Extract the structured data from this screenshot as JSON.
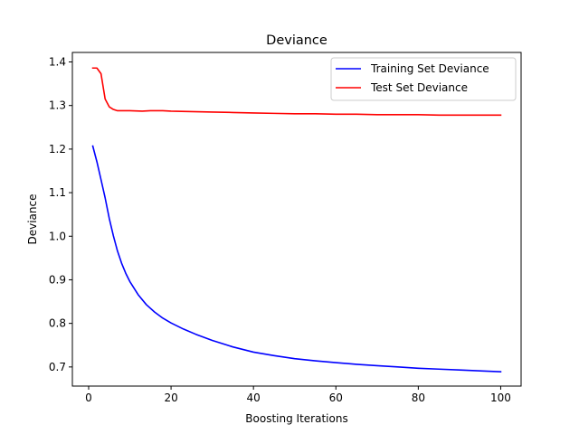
{
  "chart_data": {
    "type": "line",
    "title": "Deviance",
    "xlabel": "Boosting Iterations",
    "ylabel": "Deviance",
    "xlim": [
      -3.95,
      104.95
    ],
    "ylim": [
      0.6561,
      1.4218
    ],
    "xticks": [
      0,
      20,
      40,
      60,
      80,
      100
    ],
    "yticks": [
      0.7,
      0.8,
      0.9,
      1.0,
      1.1,
      1.2,
      1.3,
      1.4
    ],
    "ytick_labels": [
      "0.7",
      "0.8",
      "0.9",
      "1.0",
      "1.1",
      "1.2",
      "1.3",
      "1.4"
    ],
    "grid": false,
    "legend_position": "top-right",
    "series": [
      {
        "name": "Training Set Deviance",
        "color": "#0000ff",
        "x": [
          1,
          2,
          3,
          4,
          5,
          6,
          7,
          8,
          9,
          10,
          12,
          14,
          16,
          18,
          20,
          23,
          26,
          30,
          35,
          40,
          45,
          50,
          55,
          60,
          65,
          70,
          75,
          80,
          85,
          90,
          95,
          100
        ],
        "y": [
          1.207,
          1.171,
          1.13,
          1.088,
          1.041,
          1.001,
          0.966,
          0.938,
          0.915,
          0.896,
          0.866,
          0.843,
          0.826,
          0.812,
          0.801,
          0.787,
          0.775,
          0.761,
          0.746,
          0.734,
          0.726,
          0.719,
          0.714,
          0.71,
          0.706,
          0.703,
          0.7,
          0.697,
          0.695,
          0.693,
          0.691,
          0.689
        ]
      },
      {
        "name": "Test Set Deviance",
        "color": "#ff0000",
        "x": [
          1,
          2,
          3,
          4,
          5,
          6,
          7,
          8,
          10,
          13,
          15,
          18,
          20,
          25,
          30,
          35,
          40,
          45,
          50,
          55,
          60,
          65,
          70,
          75,
          80,
          85,
          90,
          95,
          100
        ],
        "y": [
          1.386,
          1.386,
          1.373,
          1.315,
          1.297,
          1.291,
          1.288,
          1.288,
          1.288,
          1.287,
          1.288,
          1.288,
          1.287,
          1.286,
          1.285,
          1.284,
          1.283,
          1.282,
          1.281,
          1.281,
          1.28,
          1.28,
          1.279,
          1.279,
          1.279,
          1.278,
          1.278,
          1.278,
          1.278
        ]
      }
    ]
  }
}
